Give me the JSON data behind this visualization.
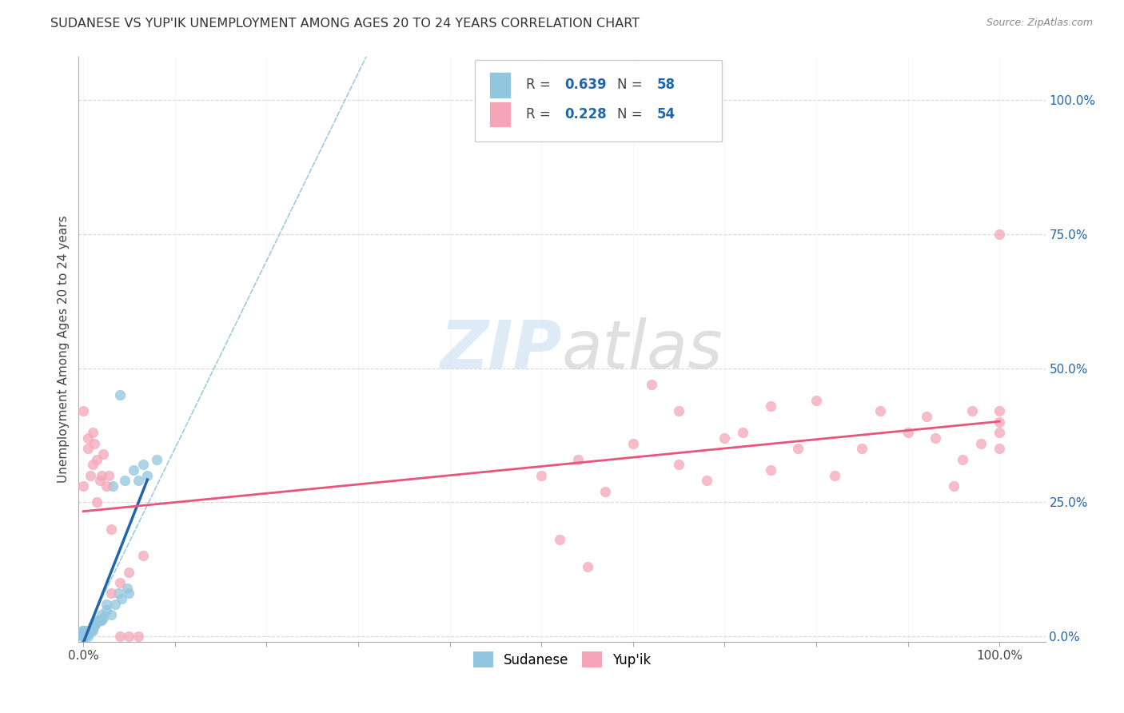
{
  "title": "SUDANESE VS YUP'IK UNEMPLOYMENT AMONG AGES 20 TO 24 YEARS CORRELATION CHART",
  "source": "Source: ZipAtlas.com",
  "ylabel": "Unemployment Among Ages 20 to 24 years",
  "ytick_vals": [
    0.0,
    0.25,
    0.5,
    0.75,
    1.0
  ],
  "ytick_labels": [
    "0.0%",
    "25.0%",
    "50.0%",
    "75.0%",
    "100.0%"
  ],
  "xtick_labels": [
    "0.0%",
    "100.0%"
  ],
  "legend_labels": [
    "Sudanese",
    "Yup'ik"
  ],
  "legend_r_values": [
    "R = 0.639",
    "R = 0.228"
  ],
  "legend_n_values": [
    "N = 58",
    "N = 54"
  ],
  "sudanese_color": "#92C5DE",
  "yupik_color": "#F4A6B8",
  "sudanese_line_color": "#2166AC",
  "yupik_line_color": "#E8547A",
  "diagonal_color": "#92C5DE",
  "watermark_zip_color": "#C8DCF0",
  "watermark_atlas_color": "#C0C0C0",
  "sudanese_x": [
    0.0,
    0.0,
    0.0,
    0.0,
    0.0,
    0.0,
    0.0,
    0.0,
    0.0,
    0.0,
    0.0,
    0.0,
    0.0,
    0.0,
    0.0,
    0.0,
    0.0,
    0.0,
    0.0,
    0.0,
    0.002,
    0.003,
    0.004,
    0.005,
    0.005,
    0.005,
    0.006,
    0.007,
    0.008,
    0.009,
    0.01,
    0.01,
    0.01,
    0.012,
    0.013,
    0.015,
    0.015,
    0.017,
    0.018,
    0.02,
    0.02,
    0.022,
    0.025,
    0.025,
    0.03,
    0.032,
    0.035,
    0.038,
    0.04,
    0.042,
    0.045,
    0.048,
    0.05,
    0.055,
    0.06,
    0.065,
    0.07,
    0.08
  ],
  "sudanese_y": [
    0.0,
    0.0,
    0.0,
    0.0,
    0.0,
    0.0,
    0.0,
    0.0,
    0.0,
    0.0,
    0.0,
    0.0,
    0.005,
    0.005,
    0.008,
    0.01,
    0.01,
    0.01,
    0.01,
    0.01,
    0.0,
    0.005,
    0.01,
    0.0,
    0.005,
    0.01,
    0.01,
    0.01,
    0.01,
    0.01,
    0.01,
    0.015,
    0.02,
    0.02,
    0.025,
    0.025,
    0.03,
    0.03,
    0.03,
    0.03,
    0.04,
    0.035,
    0.05,
    0.06,
    0.04,
    0.28,
    0.06,
    0.08,
    0.45,
    0.07,
    0.29,
    0.09,
    0.08,
    0.31,
    0.29,
    0.32,
    0.3,
    0.33
  ],
  "yupik_x": [
    0.0,
    0.0,
    0.005,
    0.005,
    0.008,
    0.01,
    0.01,
    0.012,
    0.015,
    0.015,
    0.018,
    0.02,
    0.022,
    0.025,
    0.028,
    0.03,
    0.03,
    0.04,
    0.04,
    0.05,
    0.05,
    0.06,
    0.065,
    0.5,
    0.52,
    0.54,
    0.55,
    0.57,
    0.6,
    0.62,
    0.65,
    0.65,
    0.68,
    0.7,
    0.72,
    0.75,
    0.75,
    0.78,
    0.8,
    0.82,
    0.85,
    0.87,
    0.9,
    0.92,
    0.93,
    0.95,
    0.96,
    0.97,
    0.98,
    1.0,
    1.0,
    1.0,
    1.0,
    1.0
  ],
  "yupik_y": [
    0.42,
    0.28,
    0.35,
    0.37,
    0.3,
    0.32,
    0.38,
    0.36,
    0.33,
    0.25,
    0.29,
    0.3,
    0.34,
    0.28,
    0.3,
    0.08,
    0.2,
    0.0,
    0.1,
    0.0,
    0.12,
    0.0,
    0.15,
    0.3,
    0.18,
    0.33,
    0.13,
    0.27,
    0.36,
    0.47,
    0.32,
    0.42,
    0.29,
    0.37,
    0.38,
    0.31,
    0.43,
    0.35,
    0.44,
    0.3,
    0.35,
    0.42,
    0.38,
    0.41,
    0.37,
    0.28,
    0.33,
    0.42,
    0.36,
    0.35,
    0.38,
    0.42,
    0.4,
    0.75
  ]
}
